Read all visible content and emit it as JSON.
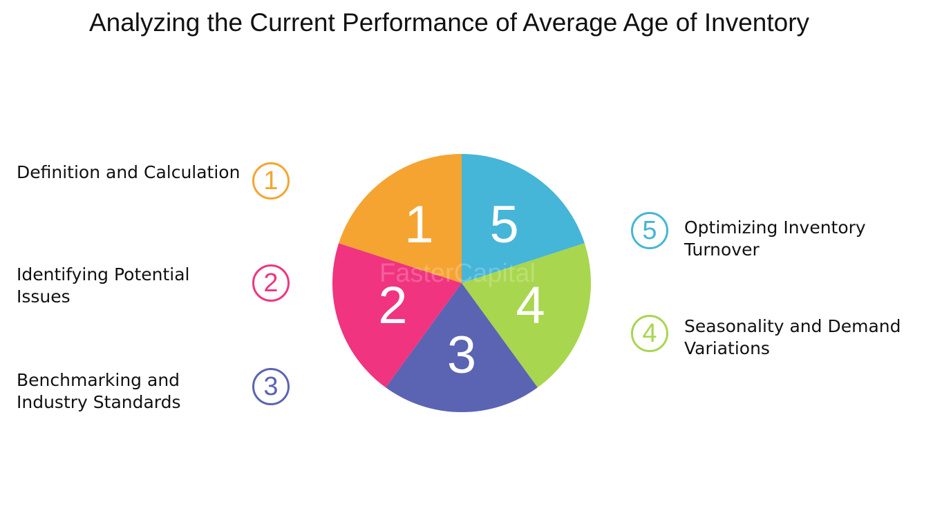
{
  "title": "Analyzing the Current Performance of Average Age of Inventory",
  "colors": {
    "orange": "#F5A431",
    "pink": "#F0347F",
    "indigo": "#5B63B3",
    "lime": "#A8D64E",
    "cyan": "#45B5D8"
  },
  "watermark": "FasterCapital",
  "items": [
    {
      "number": "1",
      "label_lines": [
        "Definition and Calculation"
      ],
      "color": "#F5A431"
    },
    {
      "number": "2",
      "label_lines": [
        "Identifying Potential",
        "Issues"
      ],
      "color": "#F0347F"
    },
    {
      "number": "3",
      "label_lines": [
        "Benchmarking and",
        "Industry Standards"
      ],
      "color": "#5B63B3"
    },
    {
      "number": "4",
      "label_lines": [
        "Seasonality and Demand",
        "Variations"
      ],
      "color": "#A8D64E"
    },
    {
      "number": "5",
      "label_lines": [
        "Optimizing Inventory",
        "Turnover"
      ],
      "color": "#45B5D8"
    }
  ]
}
